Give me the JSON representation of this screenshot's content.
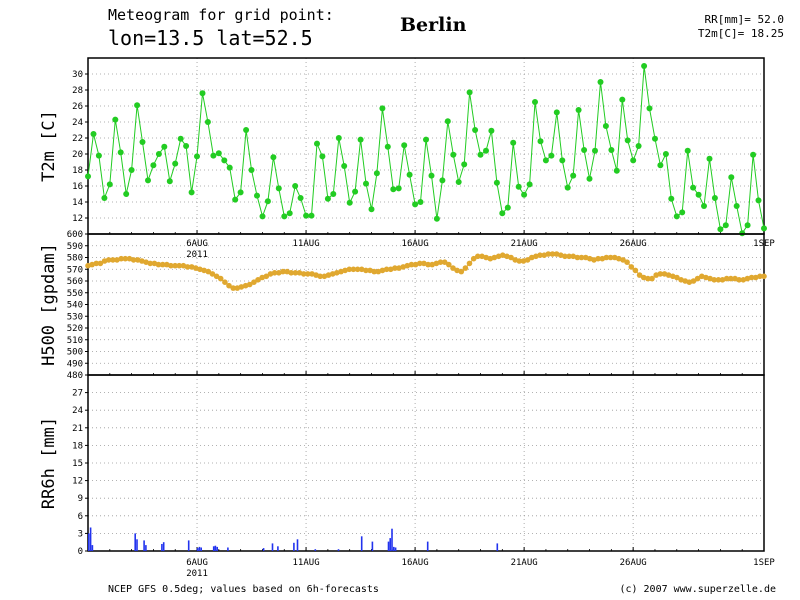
{
  "header": {
    "line1": "Meteogram for grid point:",
    "line2": "lon=13.5 lat=52.5",
    "city": "Berlin",
    "rr_summary": "RR[mm]= 52.0",
    "t2m_summary": "T2m[C]= 18.25"
  },
  "footer": {
    "source": "NCEP GFS 0.5deg; values based on 6h-forecasts",
    "credit": "(c) 2007 www.superzelle.de"
  },
  "colors": {
    "t2m_line": "#22cc22",
    "h500_line": "#e0a830",
    "rr_bar": "#2233ee",
    "grid": "#999999",
    "frame": "#000000"
  },
  "chart_data": [
    {
      "type": "line",
      "ylabel": "T2m [C]",
      "ylim": [
        10,
        32
      ],
      "yticks": [
        "12",
        "14",
        "16",
        "18",
        "20",
        "22",
        "24",
        "26",
        "28",
        "30"
      ],
      "x_start": "2011-08-01",
      "x_end": "2011-09-01",
      "grid": true,
      "series": [
        {
          "values": [
            17.2,
            22.5,
            19.8,
            14.5,
            16.2,
            24.3,
            20.2,
            15.0,
            18.0,
            26.1,
            21.5,
            16.7,
            18.6,
            20.0,
            20.9,
            16.6,
            18.8,
            21.9,
            21.0,
            15.2,
            19.7,
            27.6,
            24.0,
            19.8,
            20.1,
            19.2,
            18.3,
            14.3,
            15.2,
            23.0,
            18.0,
            14.8,
            12.2,
            14.1,
            19.6,
            15.7,
            12.2,
            12.6,
            16.0,
            14.5,
            12.3,
            12.3,
            21.3,
            19.7,
            14.4,
            15.0,
            22.0,
            18.5,
            13.9,
            15.3,
            21.8,
            16.3,
            13.1,
            17.6,
            25.7,
            20.9,
            15.6,
            15.7,
            21.1,
            17.4,
            13.7,
            14.0,
            21.8,
            17.3,
            11.9,
            16.7,
            24.1,
            19.9,
            16.5,
            18.7,
            27.7,
            23.0,
            19.9,
            20.4,
            22.9,
            16.4,
            12.6,
            13.3,
            21.4,
            15.9,
            14.9,
            16.2,
            26.5,
            21.6,
            19.2,
            19.8,
            25.2,
            19.2,
            15.8,
            17.3,
            25.5,
            20.5,
            16.9,
            20.4,
            29.0,
            23.5,
            20.5,
            17.9,
            26.8,
            21.7,
            19.2,
            21.0,
            31.0,
            25.7,
            21.9,
            18.6,
            20.0,
            14.4,
            12.2,
            12.7,
            20.4,
            15.8,
            14.9,
            13.5,
            19.4,
            14.5,
            10.6,
            11.1,
            17.1,
            13.5,
            10.1,
            11.1,
            19.9,
            14.2,
            10.7
          ]
        }
      ]
    },
    {
      "type": "line",
      "ylabel": "H500 [gpdam]",
      "ylim": [
        480,
        600
      ],
      "yticks": [
        "480",
        "490",
        "500",
        "510",
        "520",
        "530",
        "540",
        "550",
        "560",
        "570",
        "580",
        "590",
        "600"
      ],
      "x_start": "2011-08-01",
      "x_end": "2011-09-01",
      "grid": true,
      "series": [
        {
          "values": [
            573,
            574,
            575,
            575,
            577,
            578,
            578,
            578,
            579,
            579,
            579,
            578,
            578,
            577,
            576,
            575,
            575,
            574,
            574,
            574,
            573,
            573,
            573,
            573,
            572,
            572,
            571,
            570,
            569,
            568,
            566,
            564,
            562,
            559,
            556,
            554,
            554,
            555,
            556,
            557,
            559,
            561,
            563,
            564,
            566,
            567,
            567,
            568,
            568,
            567,
            567,
            567,
            566,
            566,
            566,
            565,
            564,
            564,
            565,
            566,
            567,
            568,
            569,
            570,
            570,
            570,
            570,
            569,
            569,
            568,
            568,
            569,
            570,
            570,
            571,
            571,
            572,
            573,
            574,
            574,
            575,
            575,
            574,
            574,
            575,
            576,
            576,
            574,
            571,
            569,
            568,
            571,
            575,
            579,
            581,
            581,
            580,
            579,
            580,
            581,
            582,
            581,
            580,
            578,
            577,
            577,
            578,
            580,
            581,
            582,
            582,
            583,
            583,
            583,
            582,
            581,
            581,
            581,
            580,
            580,
            580,
            579,
            578,
            579,
            579,
            580,
            580,
            580,
            579,
            578,
            576,
            572,
            569,
            565,
            563,
            562,
            562,
            565,
            566,
            566,
            565,
            564,
            563,
            561,
            560,
            559,
            560,
            562,
            564,
            563,
            562,
            561,
            561,
            561,
            562,
            562,
            562,
            561,
            561,
            562,
            563,
            563,
            564,
            564
          ]
        }
      ]
    },
    {
      "type": "bar",
      "ylabel": "RR6h [mm]",
      "ylim": [
        0,
        30
      ],
      "yticks": [
        "0",
        "3",
        "6",
        "9",
        "12",
        "15",
        "18",
        "21",
        "24",
        "27"
      ],
      "x_start": "2011-08-01",
      "x_end": "2011-09-01",
      "x_ticks": [
        "6AUG",
        "11AUG",
        "16AUG",
        "21AUG",
        "26AUG",
        "1SEP"
      ],
      "x_year": "2011",
      "grid": true,
      "series": [
        {
          "values": [
            3.0,
            4.0,
            1.0,
            0,
            0,
            0,
            0,
            0,
            0,
            0,
            0,
            0,
            0,
            0,
            0,
            0,
            0,
            0,
            0,
            0,
            0,
            0,
            0,
            0,
            0,
            0,
            3.0,
            2.0,
            0,
            0,
            0,
            1.8,
            1.0,
            0,
            0,
            0,
            0,
            0,
            0,
            0,
            0,
            1.2,
            1.5,
            0,
            0,
            0,
            0,
            0,
            0,
            0,
            0,
            0,
            0,
            0,
            0,
            0,
            1.8,
            0,
            0,
            0,
            0,
            0.5,
            0.7,
            0.6,
            0,
            0,
            0,
            0,
            0,
            0,
            0.8,
            0.9,
            0.7,
            0,
            0,
            0,
            0,
            0,
            0.6,
            0,
            0,
            0,
            0,
            0,
            0,
            0,
            0,
            0,
            0,
            0,
            0,
            0,
            0,
            0,
            0,
            0,
            0,
            0,
            0.5,
            0,
            0,
            0,
            0,
            1.3,
            0,
            0,
            0.8,
            0,
            0,
            0,
            0,
            0,
            0,
            0,
            0,
            1.4,
            0,
            2.0,
            0,
            0,
            0,
            0,
            0,
            0,
            0,
            0,
            0,
            0.3,
            0,
            0,
            0,
            0,
            0,
            0,
            0,
            0,
            0,
            0,
            0,
            0,
            0.3,
            0,
            0,
            0,
            0,
            0,
            0,
            0,
            0,
            0,
            0,
            0,
            0,
            2.5,
            0,
            0,
            0,
            0,
            0,
            1.6,
            0,
            0,
            0,
            0,
            0,
            0,
            0,
            0,
            1.6,
            2.2,
            3.8,
            0.7,
            0.6,
            0,
            0,
            0,
            0,
            0,
            0,
            0,
            0,
            0,
            0,
            0,
            0,
            0,
            0,
            0,
            0,
            0,
            1.6,
            0,
            0,
            0,
            0,
            0,
            0,
            0,
            0,
            0,
            0,
            0,
            0,
            0,
            0,
            0,
            0,
            0,
            0,
            0,
            0,
            0,
            0,
            0,
            0,
            0,
            0,
            0,
            0,
            0,
            0,
            0,
            0,
            0,
            0,
            0,
            0,
            0,
            0,
            1.3,
            0,
            0,
            0,
            0,
            0,
            0,
            0,
            0,
            0,
            0,
            0,
            0,
            0,
            0,
            0,
            0,
            0,
            0,
            0,
            0,
            0,
            0,
            0,
            0,
            0,
            0,
            0,
            0,
            0,
            0,
            0,
            0,
            0,
            0,
            0,
            0,
            0,
            0,
            0,
            0,
            0,
            0,
            0,
            0,
            0,
            0,
            0,
            0,
            0,
            0,
            0,
            0,
            0,
            0,
            0,
            0,
            0,
            0,
            0,
            0,
            0,
            0,
            0,
            0,
            0,
            0,
            0,
            0,
            0,
            0,
            0,
            0,
            0,
            0,
            0,
            0,
            0,
            0,
            0,
            0,
            0,
            0,
            0,
            0,
            0,
            0,
            0,
            0,
            0,
            0,
            0,
            0,
            0,
            0,
            0,
            0,
            0,
            0,
            0,
            0,
            0,
            0,
            0,
            0,
            0,
            0,
            0,
            0,
            0,
            0,
            0,
            0,
            0,
            0,
            0,
            0,
            0,
            0,
            0,
            0,
            0,
            0,
            0,
            0,
            0,
            0,
            0,
            0,
            0,
            0,
            0,
            0,
            0,
            0,
            0,
            0,
            0,
            0,
            0,
            0,
            0,
            0,
            0,
            0,
            0,
            0,
            0,
            0,
            0
          ]
        }
      ]
    }
  ]
}
